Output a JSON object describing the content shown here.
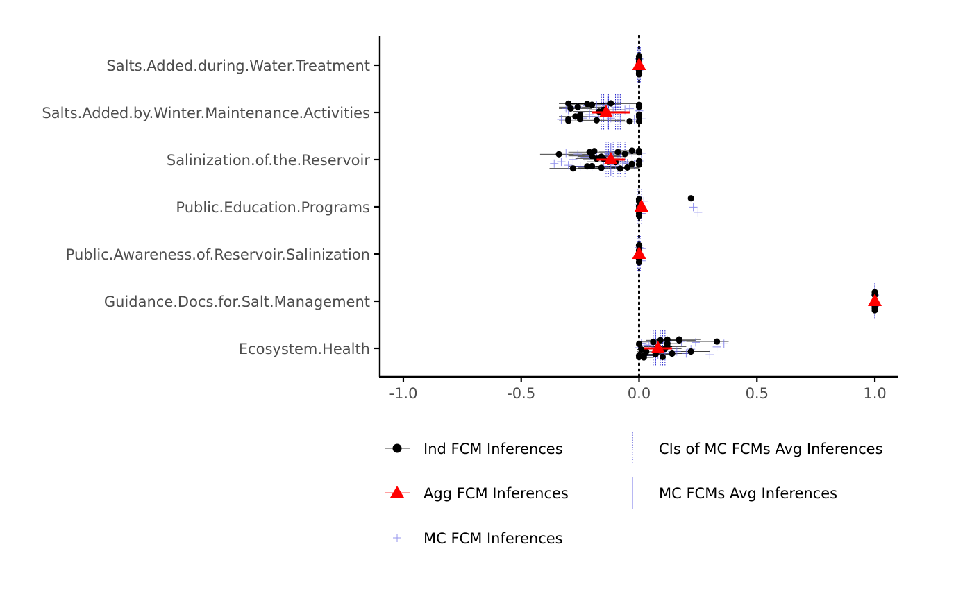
{
  "chart_data": {
    "type": "scatter",
    "title": "",
    "xlabel": "",
    "ylabel": "",
    "xlim": [
      -1.1,
      1.1
    ],
    "x_ticks": [
      -1.0,
      -0.5,
      0.0,
      0.5,
      1.0
    ],
    "x_tick_labels": [
      "-1.0",
      "-0.5",
      "0.0",
      "0.5",
      "1.0"
    ],
    "reference_line": {
      "x": 0,
      "style": "dotted"
    },
    "categories": [
      "Salts.Added.during.Water.Treatment",
      "Salts.Added.by.Winter.Maintenance.Activities",
      "Salinization.of.the.Reservoir",
      "Public.Education.Programs",
      "Public.Awareness.of.Reservoir.Salinization",
      "Guidance.Docs.for.Salt.Management",
      "Ecosystem.Health"
    ],
    "colors": {
      "ind": "#000000",
      "agg": "#ff0000",
      "mc": "#6a6ae6",
      "ci": "#2222cc"
    },
    "series": [
      {
        "name": "Ind FCM Inferences",
        "values": [
          [
            0.0,
            0.0,
            0.0,
            0.0,
            0.0,
            0.0,
            0.0,
            0.0,
            0.0,
            0.0,
            0.0,
            0.0
          ],
          [
            -0.3,
            -0.18,
            -0.15,
            -0.29,
            -0.3,
            -0.22,
            -0.27,
            -0.25,
            -0.2,
            -0.04,
            -0.26,
            -0.17,
            -0.25,
            -0.12,
            -0.3,
            -0.14,
            0.0,
            0.0,
            0.0,
            0.0,
            0.0
          ],
          [
            -0.1,
            -0.09,
            -0.28,
            -0.34,
            -0.18,
            -0.22,
            -0.03,
            -0.2,
            -0.15,
            -0.06,
            -0.08,
            -0.21,
            -0.13,
            -0.03,
            -0.19,
            -0.16,
            -0.2,
            -0.16,
            -0.05,
            0.0,
            0.0,
            0.0,
            0.0
          ],
          [
            0.0,
            0.0,
            0.0,
            0.0,
            0.0,
            0.0,
            0.0,
            0.22
          ],
          [
            0.0,
            0.0,
            0.0,
            0.0,
            0.0,
            0.0,
            0.0,
            0.0
          ],
          [
            1.0,
            1.0,
            1.0,
            1.0,
            1.0,
            1.0,
            1.0,
            1.0
          ],
          [
            0.0,
            0.08,
            0.12,
            0.0,
            0.17,
            0.22,
            0.03,
            0.09,
            0.1,
            0.0,
            0.12,
            0.02,
            0.17,
            0.07,
            0.11,
            0.06,
            0.02,
            0.33,
            0.01,
            0.14,
            0.12
          ]
        ],
        "ci": [
          [
            null,
            null,
            null,
            null,
            null,
            null,
            null,
            null,
            null,
            null,
            null,
            null
          ],
          [
            [
              -0.34,
              0.0
            ],
            [
              -0.26,
              -0.06
            ],
            [
              -0.21,
              -0.06
            ],
            [
              -0.34,
              -0.2
            ],
            [
              -0.34,
              -0.24
            ],
            [
              -0.3,
              -0.1
            ],
            [
              -0.34,
              -0.17
            ],
            [
              -0.34,
              -0.1
            ],
            [
              -0.3,
              -0.08
            ],
            [
              -0.12,
              0.0
            ],
            [
              -0.34,
              -0.14
            ],
            [
              -0.28,
              -0.06
            ],
            [
              -0.34,
              -0.15
            ],
            [
              -0.2,
              0.0
            ],
            [
              -0.34,
              -0.22
            ],
            [
              -0.24,
              -0.04
            ],
            null,
            null,
            null,
            null,
            null
          ],
          [
            [
              -0.2,
              0.0
            ],
            [
              -0.17,
              -0.01
            ],
            [
              -0.38,
              -0.16
            ],
            [
              -0.42,
              -0.2
            ],
            [
              -0.27,
              -0.08
            ],
            [
              -0.3,
              -0.12
            ],
            [
              -0.1,
              0.0
            ],
            [
              -0.28,
              -0.08
            ],
            [
              -0.24,
              -0.06
            ],
            [
              -0.14,
              0.0
            ],
            [
              -0.16,
              0.0
            ],
            [
              -0.3,
              -0.1
            ],
            [
              -0.22,
              -0.04
            ],
            [
              -0.08,
              0.0
            ],
            [
              -0.3,
              -0.08
            ],
            [
              -0.26,
              -0.06
            ],
            [
              -0.3,
              -0.08
            ],
            [
              -0.26,
              -0.06
            ],
            [
              -0.12,
              0.0
            ],
            null,
            null,
            null,
            null
          ],
          [
            null,
            null,
            null,
            null,
            null,
            null,
            null,
            [
              0.04,
              0.32
            ]
          ],
          [
            null,
            null,
            null,
            null,
            null,
            null,
            null,
            null
          ],
          [
            null,
            null,
            null,
            null,
            null,
            null,
            null,
            null
          ],
          [
            [
              -0.01,
              0.04
            ],
            [
              0.02,
              0.14
            ],
            [
              0.06,
              0.18
            ],
            null,
            [
              0.1,
              0.24
            ],
            [
              0.14,
              0.3
            ],
            [
              -0.01,
              0.08
            ],
            [
              0.03,
              0.16
            ],
            [
              0.04,
              0.18
            ],
            null,
            [
              0.06,
              0.2
            ],
            [
              -0.01,
              0.06
            ],
            [
              0.1,
              0.26
            ],
            [
              0.02,
              0.14
            ],
            [
              0.05,
              0.18
            ],
            [
              0.01,
              0.12
            ],
            [
              -0.01,
              0.06
            ],
            [
              0.2,
              0.38
            ],
            [
              -0.01,
              0.04
            ],
            [
              0.08,
              0.22
            ],
            [
              0.06,
              0.18
            ]
          ]
        ]
      },
      {
        "name": "Agg FCM Inferences",
        "values": [
          0.0,
          -0.14,
          -0.12,
          0.01,
          0.0,
          1.0,
          0.08
        ],
        "ci": [
          null,
          [
            -0.2,
            -0.04
          ],
          [
            -0.18,
            -0.06
          ],
          null,
          null,
          null,
          [
            0.02,
            0.14
          ]
        ]
      },
      {
        "name": "MC FCM Inferences",
        "values": [
          [
            0.0,
            0.0,
            0.0,
            0.0,
            0.0,
            0.0,
            0.0,
            0.0
          ],
          [
            -0.33,
            -0.31,
            -0.3,
            -0.28,
            -0.26,
            -0.25,
            -0.24,
            -0.22,
            -0.21,
            -0.2,
            -0.18,
            -0.17,
            -0.15,
            -0.14,
            -0.12,
            -0.11,
            -0.1,
            -0.08,
            -0.06,
            -0.04,
            -0.02,
            -0.01,
            0.0,
            0.01
          ],
          [
            -0.36,
            -0.33,
            -0.31,
            -0.3,
            -0.28,
            -0.26,
            -0.25,
            -0.23,
            -0.21,
            -0.2,
            -0.18,
            -0.16,
            -0.15,
            -0.13,
            -0.11,
            -0.1,
            -0.08,
            -0.07,
            -0.05,
            -0.03,
            -0.02,
            0.0,
            0.01
          ],
          [
            0.0,
            0.01,
            0.02,
            0.23,
            0.25
          ],
          [
            0.0,
            0.0,
            0.0,
            0.01,
            0.01
          ],
          [
            1.0,
            1.0,
            1.0,
            1.0
          ],
          [
            0.0,
            0.01,
            0.02,
            0.03,
            0.04,
            0.05,
            0.06,
            0.07,
            0.08,
            0.09,
            0.1,
            0.11,
            0.12,
            0.14,
            0.16,
            0.18,
            0.2,
            0.22,
            0.24,
            0.3,
            0.33,
            0.36
          ]
        ]
      },
      {
        "name": "MC FCMs Avg Inferences",
        "values": [
          0.0,
          -0.13,
          -0.12,
          0.0,
          0.0,
          1.0,
          0.07
        ]
      },
      {
        "name": "CIs of MC FCMs Avg Inferences",
        "values": [
          [
            [
              -0.005,
              0.005
            ]
          ],
          [
            [
              -0.16,
              -0.1
            ],
            [
              -0.15,
              -0.09
            ],
            [
              -0.13,
              -0.08
            ],
            [
              0.0,
              0.0
            ]
          ],
          [
            [
              -0.14,
              -0.09
            ],
            [
              -0.13,
              -0.08
            ],
            [
              -0.11,
              -0.06
            ]
          ],
          [
            [
              -0.005,
              0.01
            ]
          ],
          [
            [
              -0.005,
              0.005
            ]
          ],
          [
            [
              1.0,
              1.0
            ]
          ],
          [
            [
              0.05,
              0.09
            ],
            [
              0.06,
              0.1
            ],
            [
              0.07,
              0.11
            ]
          ]
        ]
      }
    ],
    "legend": {
      "position": "bottom",
      "entries": [
        {
          "label": "Ind FCM Inferences",
          "symbol": "point-line"
        },
        {
          "label": "Agg FCM Inferences",
          "symbol": "triangle-line"
        },
        {
          "label": "MC FCM Inferences",
          "symbol": "plus"
        },
        {
          "label": "CIs of MC FCMs Avg Inferences",
          "symbol": "dotted-vline"
        },
        {
          "label": "MC FCMs Avg Inferences",
          "symbol": "solid-vline"
        }
      ]
    },
    "grid": false
  }
}
